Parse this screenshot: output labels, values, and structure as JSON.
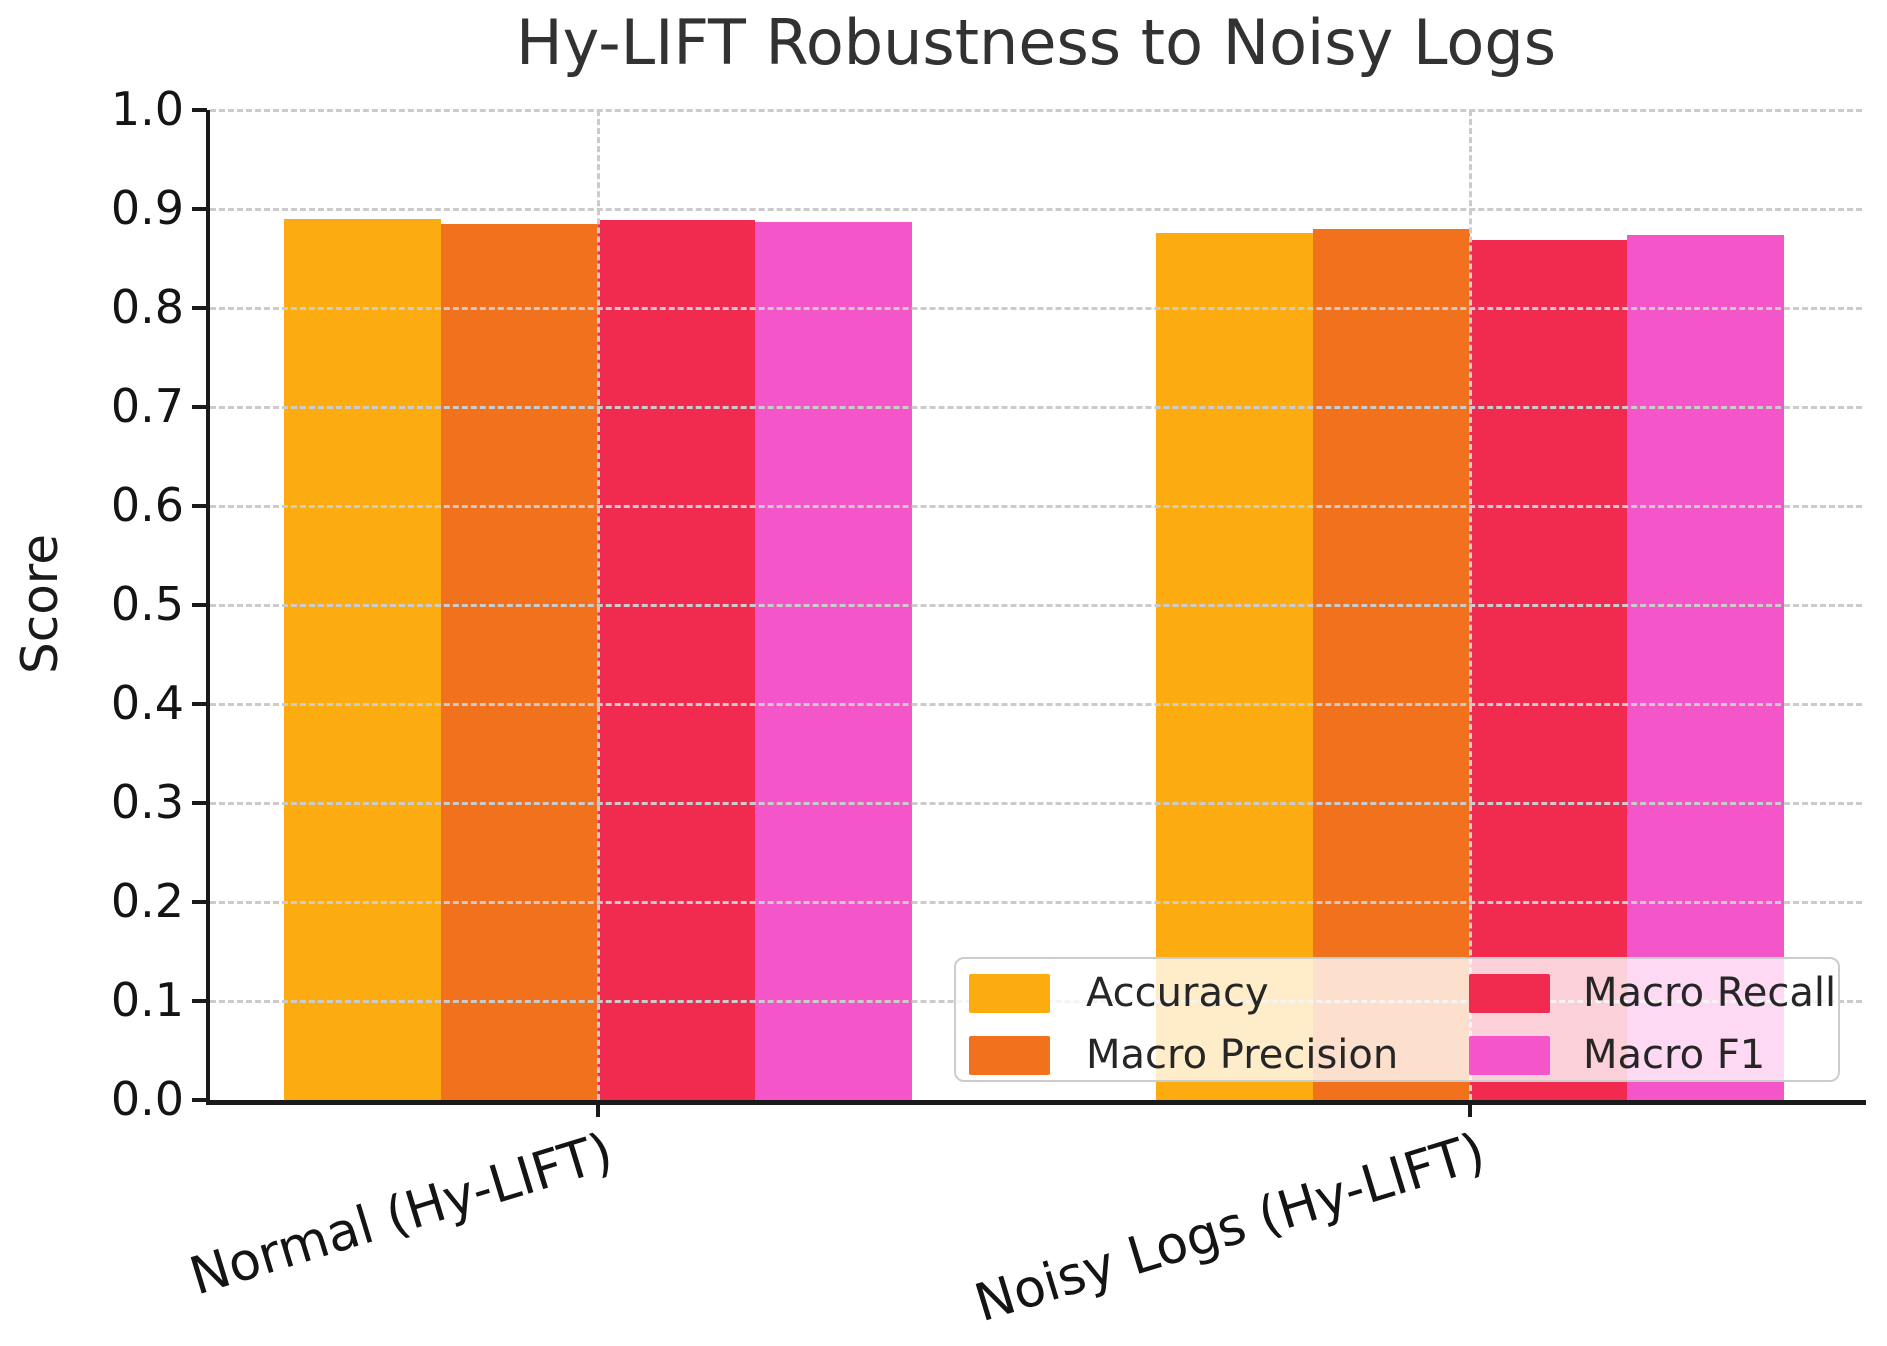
{
  "title": "Hy-LIFT Robustness to Noisy Logs",
  "chart_data": {
    "type": "bar",
    "title": "Hy-LIFT Robustness to Noisy Logs",
    "xlabel": "",
    "ylabel": "Score",
    "categories": [
      "Normal (Hy-LIFT)",
      "Noisy Logs (Hy-LIFT)"
    ],
    "series": [
      {
        "name": "Accuracy",
        "color": "#FCAC11",
        "values": [
          0.89,
          0.876
        ]
      },
      {
        "name": "Macro Precision",
        "color": "#F2711D",
        "values": [
          0.885,
          0.88
        ]
      },
      {
        "name": "Macro Recall",
        "color": "#F12A50",
        "values": [
          0.889,
          0.869
        ]
      },
      {
        "name": "Macro F1",
        "color": "#F455C8",
        "values": [
          0.887,
          0.874
        ]
      }
    ],
    "ylim": [
      0.0,
      1.0
    ],
    "yticks": [
      "0.0",
      "0.1",
      "0.2",
      "0.3",
      "0.4",
      "0.5",
      "0.6",
      "0.7",
      "0.8",
      "0.9",
      "1.0"
    ],
    "grid": true,
    "grid_style": "dashed",
    "legend_position": "lower right",
    "legend_columns": 2,
    "colors": {
      "accuracy": "#FCAC11",
      "macro_precision": "#F2711D",
      "macro_recall": "#F12A50",
      "macro_f1": "#F455C8",
      "grid": "#cbcbcb",
      "axis": "#1a1a1a",
      "title_text": "#323232"
    }
  }
}
